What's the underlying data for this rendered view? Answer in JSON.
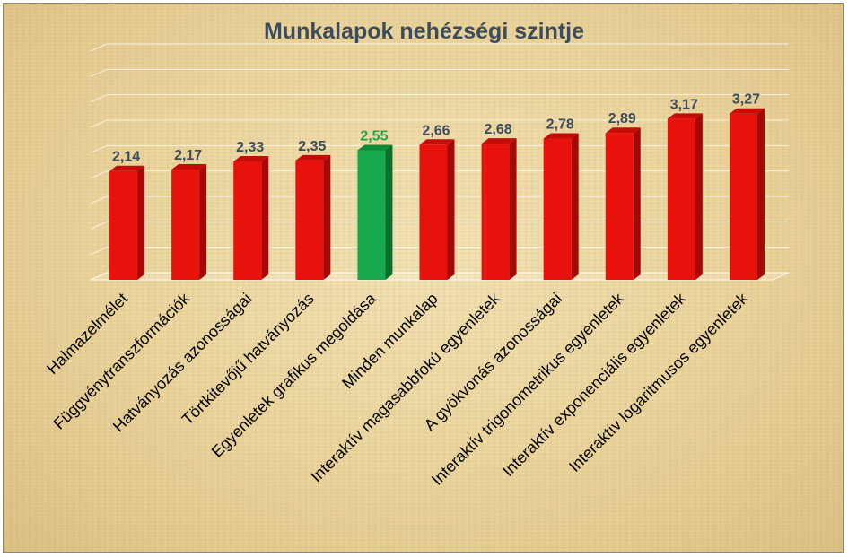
{
  "chart_data": {
    "type": "bar",
    "title": "Munkalapok nehézségi szintje",
    "categories": [
      "Halmazelmélet",
      "Függvénytranszformációk",
      "Hatványozás azonosságai",
      "Törtkitevőjű hatványozás",
      "Egyenletek  grafikus megoldása",
      "Minden munkalap",
      "Interaktív magasabbfokú egyenletek",
      "A gyökvonás azonosságai",
      "Interaktív trigonometrikus egyenletek",
      "Interaktív exponenciális egyenletek",
      "Interaktív logaritmusos egyenletek"
    ],
    "values": [
      2.14,
      2.17,
      2.33,
      2.35,
      2.55,
      2.66,
      2.68,
      2.78,
      2.89,
      3.17,
      3.27
    ],
    "value_labels": [
      "2,14",
      "2,17",
      "2,33",
      "2,35",
      "2,55",
      "2,66",
      "2,68",
      "2,78",
      "2,89",
      "3,17",
      "3,27"
    ],
    "highlight_index": 4,
    "xlabel": "",
    "ylabel": "",
    "ylim": [
      0,
      4.5
    ],
    "grid": true,
    "legend": "none",
    "colors": {
      "bar": "#e8120c",
      "bar_side": "#a30906",
      "bar_top": "#c40c08",
      "highlight": "#17a94b",
      "highlight_side": "#0b6d2c",
      "highlight_top": "#0e8a39",
      "label": "#3d4b5c",
      "highlight_label": "#20a34a",
      "grid": "#ffffff",
      "axis_text": "#000000"
    }
  }
}
